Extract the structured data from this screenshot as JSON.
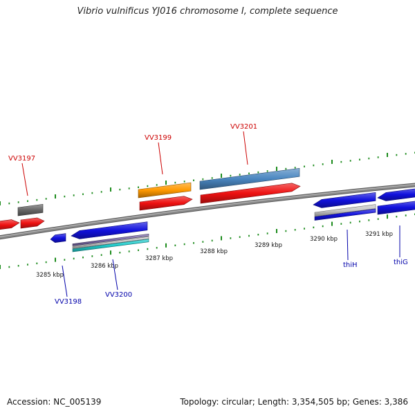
{
  "title": "Vibrio vulnificus YJ016 chromosome I, complete sequence",
  "footer": {
    "accession": "Accession: NC_005139",
    "summary": "Topology: circular; Length: 3,354,505 bp; Genes: 3,386"
  },
  "colors": {
    "backbone": "#8a8a8a",
    "tick": "#1a8a1a",
    "forward_label": "#cc0000",
    "reverse_label": "#0000aa",
    "red": "#ee1111",
    "blue": "#1111dd",
    "orange": "#ff9900",
    "steelblue": "#4a86c0",
    "gray": "#666666",
    "silver": "#c8c8c8",
    "cyan": "#22cccc",
    "purple": "#7a6aa8"
  },
  "scale_labels": [
    "3285 kbp",
    "3286 kbp",
    "3287 kbp",
    "3288 kbp",
    "3289 kbp",
    "3290 kbp",
    "3291 kbp"
  ],
  "gene_labels": {
    "forward": [
      "VV3197",
      "VV3199",
      "VV3201"
    ],
    "reverse": [
      "VV3198",
      "VV3200",
      "thiH",
      "thiG"
    ]
  }
}
